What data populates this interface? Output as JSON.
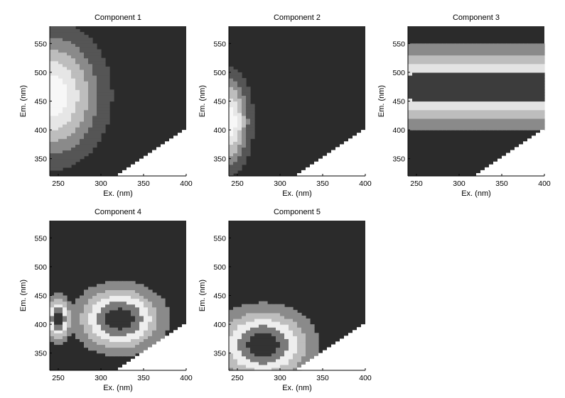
{
  "figure": {
    "panels": [
      {
        "title": "Component 1",
        "xlabel": "Ex. (nm)",
        "ylabel": "Em. (nm)"
      },
      {
        "title": "Component 2",
        "xlabel": "Ex. (nm)",
        "ylabel": "Em. (nm)"
      },
      {
        "title": "Component 3",
        "xlabel": "Ex. (nm)",
        "ylabel": "Em. (nm)"
      },
      {
        "title": "Component 4",
        "xlabel": "Ex. (nm)",
        "ylabel": "Em. (nm)"
      },
      {
        "title": "Component 5",
        "xlabel": "Ex. (nm)",
        "ylabel": "Em. (nm)"
      }
    ]
  },
  "chart_data": [
    {
      "type": "contour",
      "title": "Component 1",
      "xlabel": "Ex. (nm)",
      "ylabel": "Em. (nm)",
      "xlim": [
        240,
        400
      ],
      "ylim": [
        320,
        580
      ],
      "xticks": [
        250,
        300,
        350,
        400
      ],
      "yticks": [
        350,
        400,
        450,
        500,
        550
      ],
      "grid": false,
      "levels": [
        "#2b2b2b",
        "#555555",
        "#8a8a8a",
        "#bdbdbd",
        "#e6e6e6",
        "#f7f7f7"
      ],
      "peaks": [
        {
          "ex": 240,
          "em": 460,
          "ex_halfwidth": 50,
          "em_halfwidth": 90
        }
      ]
    },
    {
      "type": "contour",
      "title": "Component 2",
      "xlabel": "Ex. (nm)",
      "ylabel": "Em. (nm)",
      "xlim": [
        240,
        400
      ],
      "ylim": [
        320,
        580
      ],
      "xticks": [
        250,
        300,
        350,
        400
      ],
      "yticks": [
        350,
        400,
        450,
        500,
        550
      ],
      "grid": false,
      "levels": [
        "#2b2b2b",
        "#555555",
        "#8a8a8a",
        "#bdbdbd",
        "#e6e6e6",
        "#f7f7f7"
      ],
      "peaks": [
        {
          "ex": 240,
          "em": 415,
          "ex_halfwidth": 20,
          "em_halfwidth": 65
        }
      ]
    },
    {
      "type": "contour",
      "title": "Component 3",
      "xlabel": "Ex. (nm)",
      "ylabel": "Em. (nm)",
      "xlim": [
        240,
        400
      ],
      "ylim": [
        320,
        580
      ],
      "xticks": [
        250,
        300,
        350,
        400
      ],
      "yticks": [
        350,
        400,
        450,
        500,
        550
      ],
      "grid": false,
      "levels": [
        "#2b2b2b",
        "#8a8a8a",
        "#bdbdbd",
        "#e3e3e3",
        "#3c3c3c"
      ],
      "peaks": [
        {
          "ex": 268,
          "em": 478,
          "ex_halfwidth": 15,
          "em_halfwidth": 25
        }
      ],
      "plateau": {
        "ex_range": [
          245,
          400
        ],
        "em_range": [
          440,
          510
        ]
      }
    },
    {
      "type": "contour",
      "title": "Component 4",
      "xlabel": "Ex. (nm)",
      "ylabel": "Em. (nm)",
      "xlim": [
        240,
        400
      ],
      "ylim": [
        320,
        580
      ],
      "xticks": [
        250,
        300,
        350,
        400
      ],
      "yticks": [
        350,
        400,
        450,
        500,
        550
      ],
      "grid": false,
      "levels": [
        "#2b2b2b",
        "#8a8a8a",
        "#bdbdbd",
        "#eeeeee",
        "#7a7a7a",
        "#333333"
      ],
      "peaks": [
        {
          "ex": 250,
          "em": 410,
          "ex_halfwidth": 12,
          "em_halfwidth": 30
        },
        {
          "ex": 322,
          "em": 410,
          "ex_halfwidth": 40,
          "em_halfwidth": 45
        }
      ]
    },
    {
      "type": "contour",
      "title": "Component 5",
      "xlabel": "Ex. (nm)",
      "ylabel": "Em. (nm)",
      "xlim": [
        240,
        400
      ],
      "ylim": [
        320,
        580
      ],
      "xticks": [
        250,
        300,
        350,
        400
      ],
      "yticks": [
        350,
        400,
        450,
        500,
        550
      ],
      "grid": false,
      "levels": [
        "#2b2b2b",
        "#8a8a8a",
        "#bdbdbd",
        "#eeeeee",
        "#7a7a7a",
        "#333333"
      ],
      "peaks": [
        {
          "ex": 280,
          "em": 365,
          "ex_halfwidth": 45,
          "em_halfwidth": 50
        }
      ]
    }
  ]
}
